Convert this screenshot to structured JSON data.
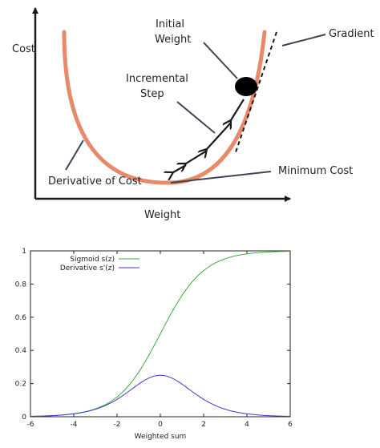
{
  "diagram": {
    "labels": {
      "cost": "Cost",
      "weight": "Weight",
      "initial_weight_1": "Initial",
      "initial_weight_2": "Weight",
      "incremental_step_1": "Incremental",
      "incremental_step_2": "Step",
      "gradient": "Gradient",
      "derivative_of_cost": "Derivative of Cost",
      "minimum_cost": "Minimum Cost"
    },
    "colors": {
      "curve": "#e8896b",
      "axis": "#1a1a1a",
      "pointer": "#3d4455"
    }
  },
  "chart_data": {
    "type": "line",
    "xlabel": "Weighted sum",
    "ylabel": "",
    "xlim": [
      -6,
      6
    ],
    "ylim": [
      0,
      1
    ],
    "xticks": [
      -6,
      -4,
      -2,
      0,
      2,
      4,
      6
    ],
    "yticks": [
      0,
      0.2,
      0.4,
      0.6,
      0.8,
      1
    ],
    "legend_position": "top-left",
    "grid": false,
    "series": [
      {
        "name": "Sigmoid s(z)",
        "function": "sigmoid",
        "color": "#3faa3f",
        "x": [
          -6,
          -5,
          -4,
          -3,
          -2,
          -1,
          0,
          1,
          2,
          3,
          4,
          5,
          6
        ],
        "values": [
          0.0025,
          0.0067,
          0.018,
          0.047,
          0.119,
          0.269,
          0.5,
          0.731,
          0.881,
          0.953,
          0.982,
          0.9933,
          0.9975
        ]
      },
      {
        "name": "Derivative s'(z)",
        "function": "sigmoid_derivative",
        "color": "#3a3ad0",
        "x": [
          -6,
          -5,
          -4,
          -3,
          -2,
          -1,
          0,
          1,
          2,
          3,
          4,
          5,
          6
        ],
        "values": [
          0.0025,
          0.0066,
          0.0177,
          0.0452,
          0.105,
          0.197,
          0.25,
          0.197,
          0.105,
          0.0452,
          0.0177,
          0.0066,
          0.0025
        ]
      }
    ]
  }
}
